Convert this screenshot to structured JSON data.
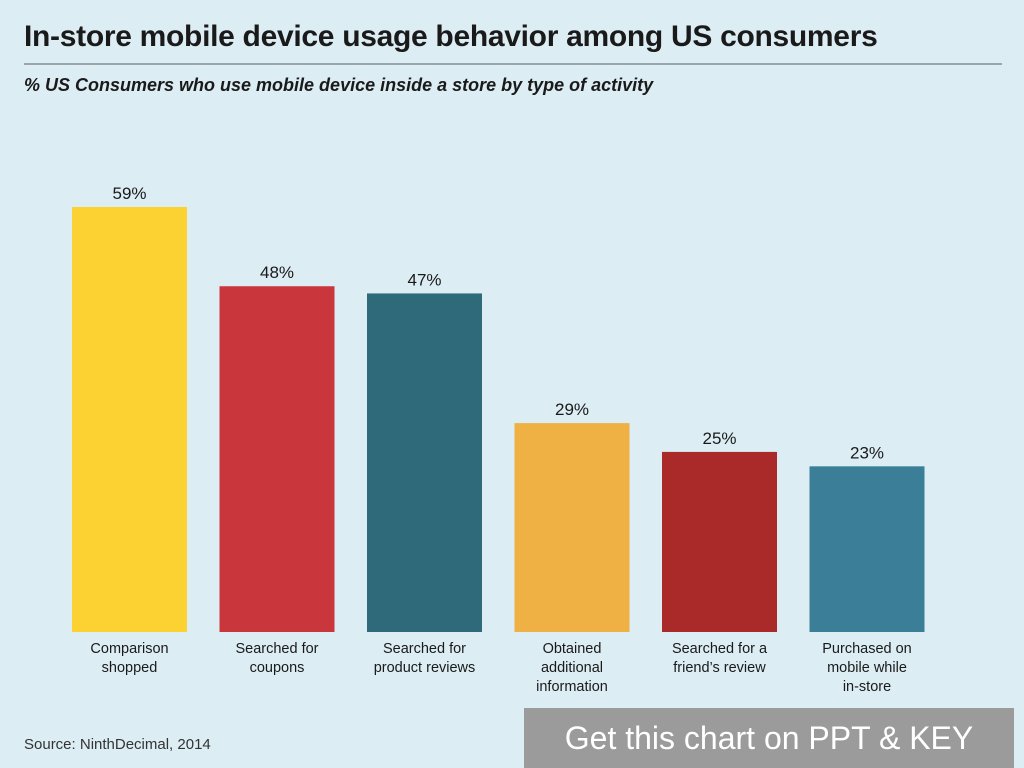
{
  "header": {
    "title": "In-store mobile device usage behavior among US consumers",
    "subtitle": "% US Consumers who use mobile device inside a store by type of activity"
  },
  "footer": {
    "source": "Source: NinthDecimal, 2014",
    "promo": "Get this chart on PPT & KEY"
  },
  "chart_data": {
    "type": "bar",
    "title": "In-store mobile device usage behavior among US consumers",
    "subtitle": "% US Consumers who use mobile device inside a store by type of activity",
    "categories": [
      [
        "Comparison",
        "shopped"
      ],
      [
        "Searched for",
        "coupons"
      ],
      [
        "Searched for",
        "product reviews"
      ],
      [
        "Obtained",
        "additional",
        "information"
      ],
      [
        "Searched for a",
        "friend’s review"
      ],
      [
        "Purchased on",
        "mobile while",
        "in-store"
      ]
    ],
    "values": [
      59,
      48,
      47,
      29,
      25,
      23
    ],
    "value_labels": [
      "59%",
      "48%",
      "47%",
      "29%",
      "25%",
      "23%"
    ],
    "colors": [
      "#fcd132",
      "#c9363c",
      "#2e6a7a",
      "#efb044",
      "#a92a28",
      "#3a7f97"
    ],
    "ylim": [
      0,
      59
    ],
    "grid": false,
    "legend": "none"
  }
}
